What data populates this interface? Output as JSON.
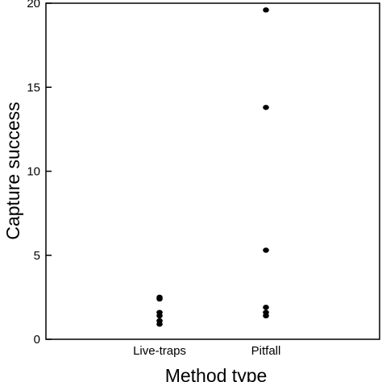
{
  "chart_data": {
    "type": "scatter",
    "categories": [
      "Live-traps",
      "Pitfall"
    ],
    "xlabel": "Method type",
    "ylabel": "Capture success",
    "ylim": [
      0,
      20
    ],
    "yticks": [
      0,
      5,
      10,
      15,
      20
    ],
    "grid": false,
    "series": [
      {
        "points": [
          {
            "category": "Live-traps",
            "y": 2.5
          },
          {
            "category": "Live-traps",
            "y": 2.4
          },
          {
            "category": "Live-traps",
            "y": 1.6
          },
          {
            "category": "Live-traps",
            "y": 1.4
          },
          {
            "category": "Live-traps",
            "y": 1.1
          },
          {
            "category": "Live-traps",
            "y": 0.9
          },
          {
            "category": "Pitfall",
            "y": 19.6
          },
          {
            "category": "Pitfall",
            "y": 13.8
          },
          {
            "category": "Pitfall",
            "y": 5.3
          },
          {
            "category": "Pitfall",
            "y": 1.9
          },
          {
            "category": "Pitfall",
            "y": 1.6
          },
          {
            "category": "Pitfall",
            "y": 1.4
          }
        ]
      }
    ]
  }
}
